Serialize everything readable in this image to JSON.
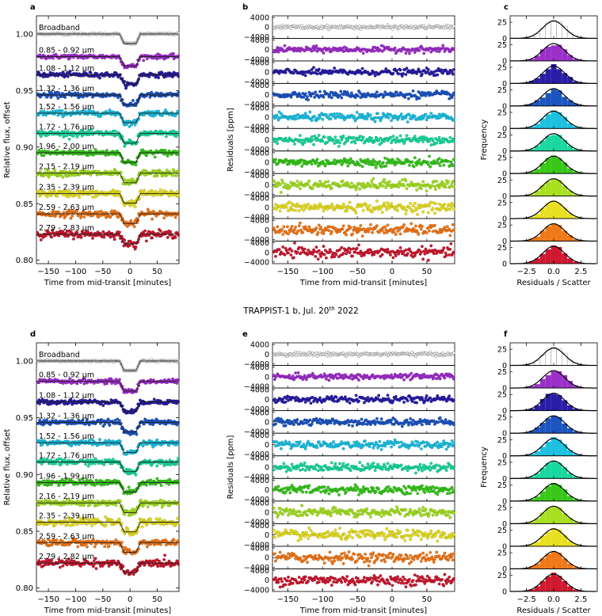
{
  "figure_title": "TRAPPIST-1 b, Jul. 20",
  "figure_title_sup": "th",
  "figure_title_tail": " 2022",
  "chart_data": [
    {
      "panel": "a",
      "type": "line",
      "xlabel": "Time from mid-transit [minutes]",
      "ylabel": "Relative flux, offset",
      "xlim": [
        -172,
        90
      ],
      "ylim": [
        0.797,
        1.016
      ],
      "xticks": [
        -150,
        -100,
        -50,
        0,
        50
      ],
      "yticks": [
        0.8,
        0.85,
        0.9,
        0.95,
        1.0
      ],
      "yticklabels": [
        "0.80",
        "0.85",
        "0.90",
        "0.95",
        "1.00"
      ],
      "series_labels": [
        "Broadband",
        "0.85 - 0.92 µm",
        "1.08 - 1.12 µm",
        "1.32 - 1.36 µm",
        "1.52 - 1.56 µm",
        "1.72 - 1.76 µm",
        "1.96 - 2.00 µm",
        "2.15 - 2.19 µm",
        "2.35 - 2.39 µm",
        "2.59 - 2.63 µm",
        "2.79 - 2.83 µm"
      ],
      "baselines": [
        1.0,
        0.98,
        0.964,
        0.946,
        0.93,
        0.912,
        0.895,
        0.877,
        0.859,
        0.841,
        0.823
      ],
      "transit_depth": 0.0085,
      "transit_ingress_egress": [
        -15,
        15
      ],
      "transit_ramp": 4
    },
    {
      "panel": "b",
      "type": "scatter",
      "ylabel": "Residuals [ppm]",
      "xlabel": "Time from mid-transit [minutes]",
      "xlim": [
        -172,
        90
      ],
      "ylim_each": [
        -4700,
        4700
      ],
      "xticks": [
        -150,
        -100,
        -50,
        0,
        50
      ],
      "yticks_each": [
        -4000,
        0,
        4000
      ]
    },
    {
      "panel": "c",
      "type": "bar",
      "xlabel": "Residuals / Scatter",
      "ylabel": "Frequency",
      "xlim": [
        -4,
        4
      ],
      "ylim_each": [
        0,
        35
      ],
      "xticks": [
        -2.5,
        0.0,
        2.5
      ],
      "yticks_each": [
        0,
        25
      ],
      "bin_centers": [
        -3.0,
        -2.5,
        -2.0,
        -1.5,
        -1.0,
        -0.5,
        0.0,
        0.5,
        1.0,
        1.5,
        2.0,
        2.5,
        3.0
      ],
      "hist_values": [
        [
          0,
          1,
          3,
          7,
          16,
          24,
          28,
          26,
          19,
          9,
          4,
          1,
          0
        ],
        [
          0,
          1,
          3,
          8,
          18,
          22,
          24,
          25,
          18,
          9,
          3,
          1,
          0
        ],
        [
          0,
          1,
          4,
          8,
          15,
          22,
          30,
          22,
          16,
          10,
          3,
          1,
          0
        ],
        [
          0,
          2,
          4,
          9,
          13,
          20,
          26,
          24,
          14,
          9,
          4,
          1,
          0
        ],
        [
          0,
          1,
          3,
          7,
          15,
          22,
          28,
          25,
          18,
          8,
          3,
          1,
          0
        ],
        [
          0,
          1,
          3,
          8,
          16,
          23,
          25,
          25,
          17,
          8,
          3,
          1,
          0
        ],
        [
          0,
          1,
          3,
          7,
          16,
          24,
          28,
          24,
          17,
          8,
          3,
          1,
          0
        ],
        [
          0,
          1,
          3,
          8,
          17,
          23,
          27,
          25,
          16,
          8,
          3,
          1,
          0
        ],
        [
          0,
          1,
          3,
          7,
          16,
          24,
          28,
          24,
          17,
          8,
          3,
          1,
          0
        ],
        [
          0,
          1,
          4,
          7,
          16,
          23,
          27,
          25,
          16,
          9,
          3,
          1,
          0
        ],
        [
          0,
          1,
          4,
          8,
          15,
          22,
          28,
          26,
          16,
          8,
          3,
          1,
          0
        ]
      ],
      "gauss_peak": 27
    },
    {
      "panel": "d",
      "type": "line",
      "xlabel": "Time from mid-transit [minutes]",
      "ylabel": "Relative flux, offset",
      "xlim": [
        -172,
        90
      ],
      "ylim": [
        0.797,
        1.016
      ],
      "xticks": [
        -150,
        -100,
        -50,
        0,
        50
      ],
      "yticks": [
        0.8,
        0.85,
        0.9,
        0.95,
        1.0
      ],
      "yticklabels": [
        "0.80",
        "0.85",
        "0.90",
        "0.95",
        "1.00"
      ],
      "series_labels": [
        "Broadband",
        "0.85 - 0.92 µm",
        "1.08 - 1.12 µm",
        "1.32 - 1.36 µm",
        "1.52 - 1.56 µm",
        "1.72 - 1.76 µm",
        "1.96 - 1.99 µm",
        "2.16 - 2.19 µm",
        "2.35 - 2.39 µm",
        "2.59 - 2.63 µm",
        "2.79 - 2.82 µm"
      ],
      "baselines": [
        1.0,
        0.982,
        0.964,
        0.946,
        0.928,
        0.911,
        0.893,
        0.875,
        0.858,
        0.84,
        0.822
      ],
      "transit_depth": 0.0085,
      "transit_ingress_egress": [
        -15,
        15
      ],
      "transit_ramp": 4
    },
    {
      "panel": "e",
      "type": "scatter",
      "ylabel": "Residuals [ppm]",
      "xlabel": "Time from mid-transit [minutes]",
      "xlim": [
        -172,
        90
      ],
      "ylim_each": [
        -4700,
        4700
      ],
      "xticks": [
        -150,
        -100,
        -50,
        0,
        50
      ],
      "yticks_each": [
        -4000,
        0,
        4000
      ]
    },
    {
      "panel": "f",
      "type": "bar",
      "xlabel": "Residuals / Scatter",
      "ylabel": "Frequency",
      "xlim": [
        -4,
        4
      ],
      "ylim_each": [
        0,
        35
      ],
      "xticks": [
        -2.5,
        0.0,
        2.5
      ],
      "yticks_each": [
        0,
        25
      ],
      "bin_centers": [
        -3.0,
        -2.5,
        -2.0,
        -1.5,
        -1.0,
        -0.5,
        0.0,
        0.5,
        1.0,
        1.5,
        2.0,
        2.5,
        3.0
      ],
      "hist_values": [
        [
          0,
          1,
          3,
          7,
          16,
          24,
          28,
          26,
          19,
          9,
          4,
          1,
          0
        ],
        [
          0,
          1,
          3,
          6,
          14,
          20,
          26,
          26,
          20,
          11,
          4,
          1,
          0
        ],
        [
          0,
          1,
          3,
          8,
          18,
          26,
          26,
          24,
          16,
          8,
          3,
          1,
          0
        ],
        [
          0,
          1,
          4,
          9,
          16,
          23,
          27,
          25,
          15,
          8,
          3,
          1,
          0
        ],
        [
          0,
          1,
          3,
          7,
          14,
          22,
          29,
          25,
          18,
          9,
          3,
          1,
          0
        ],
        [
          0,
          1,
          3,
          8,
          16,
          24,
          27,
          24,
          17,
          8,
          3,
          1,
          0
        ],
        [
          0,
          1,
          3,
          7,
          15,
          23,
          28,
          25,
          18,
          8,
          3,
          1,
          0
        ],
        [
          0,
          1,
          3,
          8,
          17,
          24,
          26,
          25,
          16,
          9,
          3,
          1,
          0
        ],
        [
          0,
          1,
          3,
          7,
          16,
          22,
          28,
          26,
          17,
          8,
          3,
          1,
          0
        ],
        [
          0,
          1,
          4,
          8,
          16,
          23,
          27,
          25,
          16,
          8,
          3,
          1,
          0
        ],
        [
          0,
          1,
          3,
          8,
          16,
          23,
          29,
          24,
          16,
          8,
          3,
          1,
          0
        ]
      ],
      "gauss_peak": 27
    }
  ],
  "series_colors": [
    "#ffffff",
    "#9b30c8",
    "#2a1ea8",
    "#1c55c0",
    "#1cc0e0",
    "#18d8a0",
    "#38c818",
    "#a8e020",
    "#e8e020",
    "#f07818",
    "#d01830"
  ],
  "curve_colors": [
    "#9e9e9e",
    "#7a1a9a",
    "#1a1070",
    "#123890",
    "#0b8aa8",
    "#0b9a6a",
    "#1b8a0b",
    "#6aa00b",
    "#a09a0b",
    "#b0500b",
    "#8a0b1a"
  ]
}
